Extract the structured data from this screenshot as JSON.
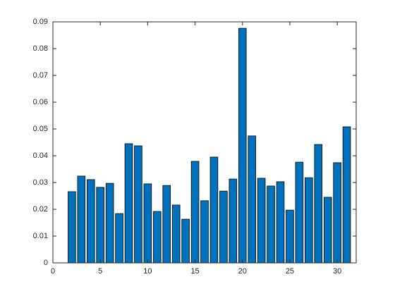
{
  "chart_data": {
    "type": "bar",
    "x": [
      2,
      3,
      4,
      5,
      6,
      7,
      8,
      9,
      10,
      11,
      12,
      13,
      14,
      15,
      16,
      17,
      18,
      19,
      20,
      21,
      22,
      23,
      24,
      25,
      26,
      27,
      28,
      29,
      30,
      31
    ],
    "values": [
      0.0266,
      0.0324,
      0.0311,
      0.0282,
      0.0297,
      0.0184,
      0.0445,
      0.0437,
      0.0295,
      0.0192,
      0.0289,
      0.0216,
      0.0163,
      0.0379,
      0.0232,
      0.0395,
      0.0268,
      0.0313,
      0.0876,
      0.0474,
      0.0316,
      0.0287,
      0.0303,
      0.0197,
      0.0376,
      0.0318,
      0.0442,
      0.0245,
      0.0374,
      0.0508
    ],
    "color": "#0072bd",
    "xlim": [
      0,
      32
    ],
    "xticks": [
      0,
      5,
      10,
      15,
      20,
      25,
      30
    ],
    "ylim": [
      0,
      0.09
    ],
    "yticks": [
      0,
      0.01,
      0.02,
      0.03,
      0.04,
      0.05,
      0.06,
      0.07,
      0.08,
      0.09
    ]
  }
}
